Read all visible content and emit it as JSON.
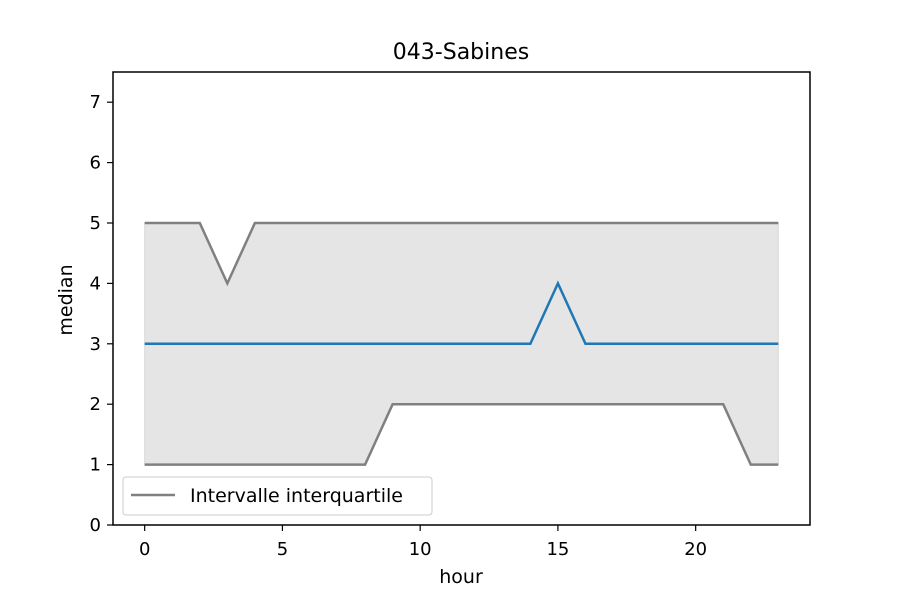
{
  "chart_data": {
    "type": "line",
    "title": "043-Sabines",
    "xlabel": "hour",
    "ylabel": "median",
    "xlim": [
      -1.15,
      24.15
    ],
    "ylim": [
      0,
      7.5
    ],
    "xticks": [
      0,
      5,
      10,
      15,
      20
    ],
    "yticks": [
      0,
      1,
      2,
      3,
      4,
      5,
      6,
      7
    ],
    "x": [
      0,
      1,
      2,
      3,
      4,
      5,
      6,
      7,
      8,
      9,
      10,
      11,
      12,
      13,
      14,
      15,
      16,
      17,
      18,
      19,
      20,
      21,
      22,
      23
    ],
    "series": [
      {
        "values": [
          3,
          3,
          3,
          3,
          3,
          3,
          3,
          3,
          3,
          3,
          3,
          3,
          3,
          3,
          3,
          4,
          3,
          3,
          3,
          3,
          3,
          3,
          3,
          3
        ],
        "color": "#1f77b4"
      },
      {
        "name": "Intervalle interquartile",
        "role": "q75",
        "values": [
          5,
          5,
          5,
          4,
          5,
          5,
          5,
          5,
          5,
          5,
          5,
          5,
          5,
          5,
          5,
          5,
          5,
          5,
          5,
          5,
          5,
          5,
          5,
          5
        ],
        "color": "#808080"
      },
      {
        "role": "q25",
        "values": [
          1,
          1,
          1,
          1,
          1,
          1,
          1,
          1,
          1,
          2,
          2,
          2,
          2,
          2,
          2,
          2,
          2,
          2,
          2,
          2,
          2,
          2,
          1,
          1
        ],
        "color": "#808080"
      }
    ],
    "band": {
      "between": [
        "q25",
        "q75"
      ],
      "color": "#e5e5e5"
    },
    "legend": {
      "position": "bottom-left",
      "entries": [
        "Intervalle interquartile"
      ]
    },
    "grid": false,
    "background": "#ffffff",
    "axes_color": "#000000"
  }
}
